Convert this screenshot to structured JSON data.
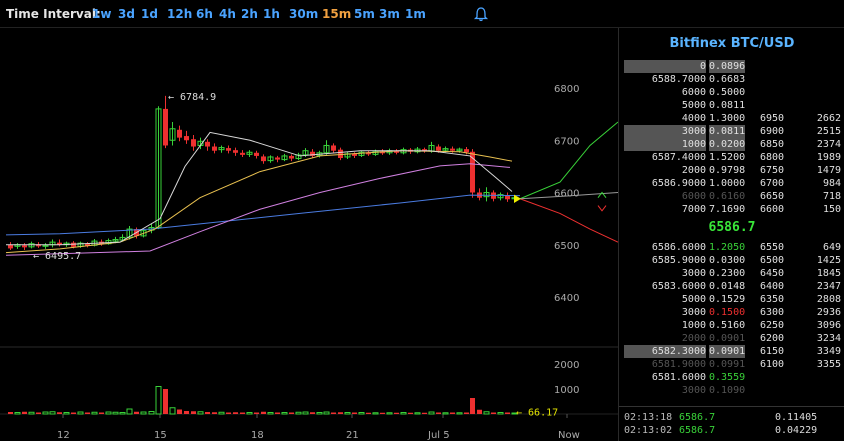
{
  "toolbar": {
    "label": "Time Interval:",
    "intervals": [
      "1w",
      "3d",
      "1d",
      "12h",
      "6h",
      "4h",
      "2h",
      "1h",
      "30m",
      "15m",
      "5m",
      "3m",
      "1m"
    ],
    "active": "15m"
  },
  "colors": {
    "interval": "#4aa3ff",
    "interval_active": "#f0a040",
    "up_candle": "#39d239",
    "down_candle": "#ee3030",
    "title": "#5ab4ff"
  },
  "chart": {
    "price_axis": [
      "6800",
      "6700",
      "6600",
      "6500",
      "6400"
    ],
    "volume_axis": [
      "2000",
      "1000"
    ],
    "x_axis": [
      "12",
      "15",
      "18",
      "21",
      "Jul 5",
      "Now"
    ],
    "high_label": "← 6784.9",
    "low_label": "← 6495.7",
    "volume_label": "← 66.17"
  },
  "book": {
    "title": "Bitfinex BTC/USD",
    "last_price": "6586.7",
    "asks": [
      {
        "price": "0",
        "amt": "0.0896",
        "sum": "",
        "cum": "",
        "hl": true,
        "dim": false
      },
      {
        "price": "6588.7000",
        "amt": "0.6683",
        "sum": "",
        "cum": "",
        "hl": false
      },
      {
        "price": "6000",
        "amt": "0.5000",
        "sum": "",
        "cum": "",
        "hl": false
      },
      {
        "price": "5000",
        "amt": "0.0811",
        "sum": "",
        "cum": "",
        "hl": false
      },
      {
        "price": "4000",
        "amt": "1.3000",
        "sum": "6950",
        "cum": "2662",
        "hl": false
      },
      {
        "price": "3000",
        "amt": "0.0811",
        "sum": "6900",
        "cum": "2515",
        "hl": true
      },
      {
        "price": "1000",
        "amt": "0.0200",
        "sum": "6850",
        "cum": "2374",
        "hl": true
      },
      {
        "price": "6587.4000",
        "amt": "1.5200",
        "sum": "6800",
        "cum": "1989",
        "hl": false
      },
      {
        "price": "2000",
        "amt": "0.9798",
        "sum": "6750",
        "cum": "1479",
        "hl": false
      },
      {
        "price": "6586.9000",
        "amt": "1.0000",
        "sum": "6700",
        "cum": "984",
        "hl": false
      },
      {
        "price": "6000",
        "amt": "0.6160",
        "sum": "6650",
        "cum": "718",
        "hl": false,
        "dim": true
      },
      {
        "price": "7000",
        "amt": "7.1690",
        "sum": "6600",
        "cum": "150",
        "hl": false
      }
    ],
    "bids": [
      {
        "price": "6586.6000",
        "amt": "1.2050",
        "sum": "6550",
        "cum": "649",
        "color": "grn"
      },
      {
        "price": "6585.9000",
        "amt": "0.0300",
        "sum": "6500",
        "cum": "1425",
        "color": ""
      },
      {
        "price": "3000",
        "amt": "0.2300",
        "sum": "6450",
        "cum": "1845",
        "color": ""
      },
      {
        "price": "6583.6000",
        "amt": "0.0148",
        "sum": "6400",
        "cum": "2347",
        "color": ""
      },
      {
        "price": "5000",
        "amt": "0.1529",
        "sum": "6350",
        "cum": "2808",
        "color": ""
      },
      {
        "price": "3000",
        "amt": "0.1500",
        "sum": "6300",
        "cum": "2936",
        "color": "red"
      },
      {
        "price": "1000",
        "amt": "0.5160",
        "sum": "6250",
        "cum": "3096",
        "color": ""
      },
      {
        "price": "2000",
        "amt": "0.0901",
        "sum": "6200",
        "cum": "3234",
        "color": "",
        "dim": true
      },
      {
        "price": "6582.3000",
        "amt": "0.0901",
        "sum": "6150",
        "cum": "3349",
        "color": "",
        "hl": true
      },
      {
        "price": "6581.9000",
        "amt": "0.0991",
        "sum": "6100",
        "cum": "3355",
        "color": "",
        "dim": true
      },
      {
        "price": "6581.6000",
        "amt": "0.3559",
        "sum": "",
        "cum": "",
        "color": "grn"
      },
      {
        "price": "3000",
        "amt": "0.1090",
        "sum": "",
        "cum": "",
        "color": "",
        "dim": true
      }
    ],
    "trades": [
      {
        "time": "02:13:18",
        "price": "6586.7",
        "amt": "0.11405"
      },
      {
        "time": "02:13:02",
        "price": "6586.7",
        "amt": "0.04229"
      }
    ]
  }
}
